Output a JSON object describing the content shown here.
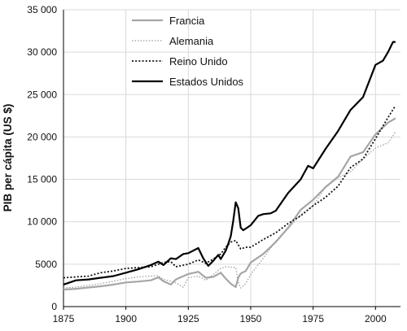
{
  "chart_data": {
    "type": "line",
    "title": "",
    "xlabel": "",
    "ylabel": "PIB per cápita (US $)",
    "xlim": [
      1875,
      2010
    ],
    "ylim": [
      0,
      35000
    ],
    "x_ticks": [
      1875,
      1900,
      1925,
      1950,
      1975,
      2000
    ],
    "x_tick_labels": [
      "1875",
      "1900",
      "1925",
      "1950",
      "1975",
      "2000"
    ],
    "y_ticks": [
      0,
      5000,
      10000,
      15000,
      20000,
      25000,
      30000,
      35000
    ],
    "y_tick_labels": [
      "0",
      "5000",
      "10 000",
      "15 000",
      "20 000",
      "25 000",
      "30 000",
      "35 000"
    ],
    "grid": "vertical and horizontal",
    "legend_position": "top-center",
    "series": [
      {
        "name": "Francia",
        "color": "#a6a6a6",
        "style": "solid",
        "x": [
          1875,
          1880,
          1885,
          1890,
          1895,
          1900,
          1905,
          1910,
          1913,
          1915,
          1918,
          1920,
          1925,
          1929,
          1932,
          1935,
          1938,
          1940,
          1942,
          1944,
          1945,
          1946,
          1948,
          1950,
          1955,
          1960,
          1965,
          1970,
          1975,
          1980,
          1985,
          1990,
          1995,
          2000,
          2005,
          2008
        ],
        "values": [
          2000,
          2100,
          2250,
          2400,
          2600,
          2850,
          2950,
          3100,
          3450,
          3000,
          2600,
          3200,
          3850,
          4100,
          3400,
          3500,
          4000,
          3300,
          2700,
          2300,
          3400,
          3900,
          4200,
          5200,
          6200,
          7600,
          9300,
          11400,
          12600,
          14100,
          15300,
          17700,
          18200,
          20300,
          21700,
          22200
        ]
      },
      {
        "name": "Alemania",
        "color": "#9a9a9a",
        "style": "dotted",
        "x": [
          1875,
          1880,
          1885,
          1890,
          1895,
          1900,
          1905,
          1910,
          1913,
          1915,
          1918,
          1920,
          1923,
          1925,
          1929,
          1932,
          1935,
          1938,
          1940,
          1944,
          1945,
          1946,
          1948,
          1950,
          1955,
          1960,
          1965,
          1970,
          1975,
          1980,
          1985,
          1990,
          1995,
          2000,
          2005,
          2008
        ],
        "values": [
          2200,
          2300,
          2500,
          2700,
          3000,
          3300,
          3500,
          3600,
          3650,
          3200,
          3000,
          2800,
          2300,
          3400,
          3600,
          3100,
          3800,
          4500,
          4700,
          4600,
          2900,
          2200,
          2700,
          3800,
          5700,
          7700,
          9200,
          10800,
          11900,
          14100,
          15200,
          15900,
          17400,
          18700,
          19300,
          20600
        ]
      },
      {
        "name": "Reino Unido",
        "color": "#111111",
        "style": "dotted",
        "x": [
          1875,
          1880,
          1885,
          1890,
          1895,
          1900,
          1905,
          1910,
          1913,
          1915,
          1918,
          1920,
          1925,
          1929,
          1932,
          1935,
          1938,
          1940,
          1942,
          1944,
          1945,
          1946,
          1948,
          1950,
          1955,
          1960,
          1965,
          1970,
          1975,
          1980,
          1985,
          1990,
          1995,
          2000,
          2005,
          2008
        ],
        "values": [
          3400,
          3500,
          3600,
          4000,
          4200,
          4500,
          4600,
          4700,
          5000,
          5200,
          5300,
          4700,
          5000,
          5500,
          5100,
          5600,
          6200,
          7000,
          7600,
          7800,
          7300,
          6800,
          7000,
          7000,
          7900,
          8700,
          9800,
          10700,
          11900,
          12900,
          14200,
          16400,
          17400,
          19800,
          22300,
          23700
        ]
      },
      {
        "name": "Estados Unidos",
        "color": "#000000",
        "style": "solid",
        "x": [
          1875,
          1880,
          1885,
          1890,
          1895,
          1900,
          1905,
          1910,
          1913,
          1915,
          1918,
          1920,
          1923,
          1925,
          1929,
          1931,
          1933,
          1935,
          1937,
          1938,
          1940,
          1941,
          1942,
          1943,
          1944,
          1945,
          1946,
          1947,
          1948,
          1950,
          1953,
          1955,
          1958,
          1960,
          1965,
          1970,
          1973,
          1975,
          1980,
          1985,
          1990,
          1995,
          2000,
          2003,
          2005,
          2007,
          2008
        ],
        "values": [
          2600,
          3100,
          3200,
          3400,
          3600,
          4000,
          4400,
          4900,
          5300,
          4900,
          5700,
          5600,
          6200,
          6300,
          6900,
          5700,
          4800,
          5400,
          6100,
          5600,
          6600,
          7400,
          8300,
          10100,
          12300,
          11600,
          9300,
          9000,
          9200,
          9600,
          10700,
          10900,
          11000,
          11300,
          13400,
          15000,
          16600,
          16300,
          18600,
          20700,
          23200,
          24700,
          28500,
          29000,
          30000,
          31200,
          31200
        ]
      }
    ]
  }
}
